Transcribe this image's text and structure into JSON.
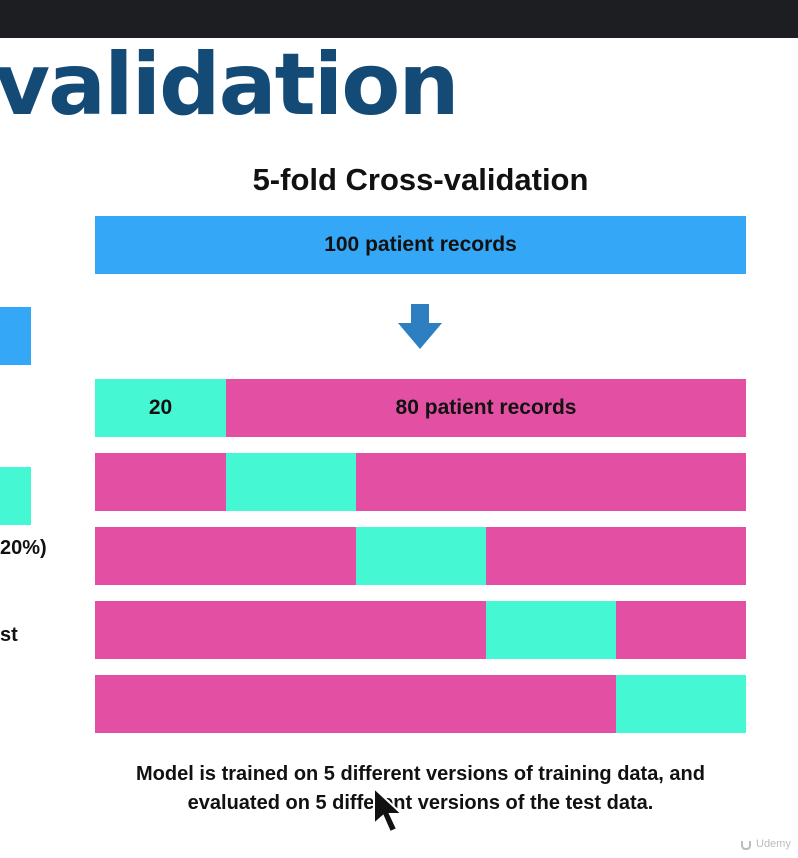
{
  "slide": {
    "heading": "validation",
    "diagram_title": "5-fold Cross-validation",
    "total_bar_label": "100 patient records",
    "split_test_label": "20",
    "split_train_label": "80 patient records",
    "left_partial_labels": [
      "20%)",
      "st"
    ],
    "caption_line1": "Model is trained on 5 different versions of training data, and",
    "caption_line2": "evaluated on 5 different versions of the test data.",
    "watermark": "Udemy"
  },
  "folds": [
    {
      "test_fold": 1
    },
    {
      "test_fold": 2
    },
    {
      "test_fold": 3
    },
    {
      "test_fold": 4
    },
    {
      "test_fold": 5
    }
  ],
  "colors": {
    "topbar": "#1d1e22",
    "heading": "#134a76",
    "all_records": "#34a7f7",
    "test": "#45f7d2",
    "train": "#e350a3",
    "arrow": "#2d7fc1"
  },
  "icons": {
    "arrow": "down-arrow-icon",
    "cursor": "mouse-pointer-icon",
    "logo": "udemy-logo-icon"
  }
}
